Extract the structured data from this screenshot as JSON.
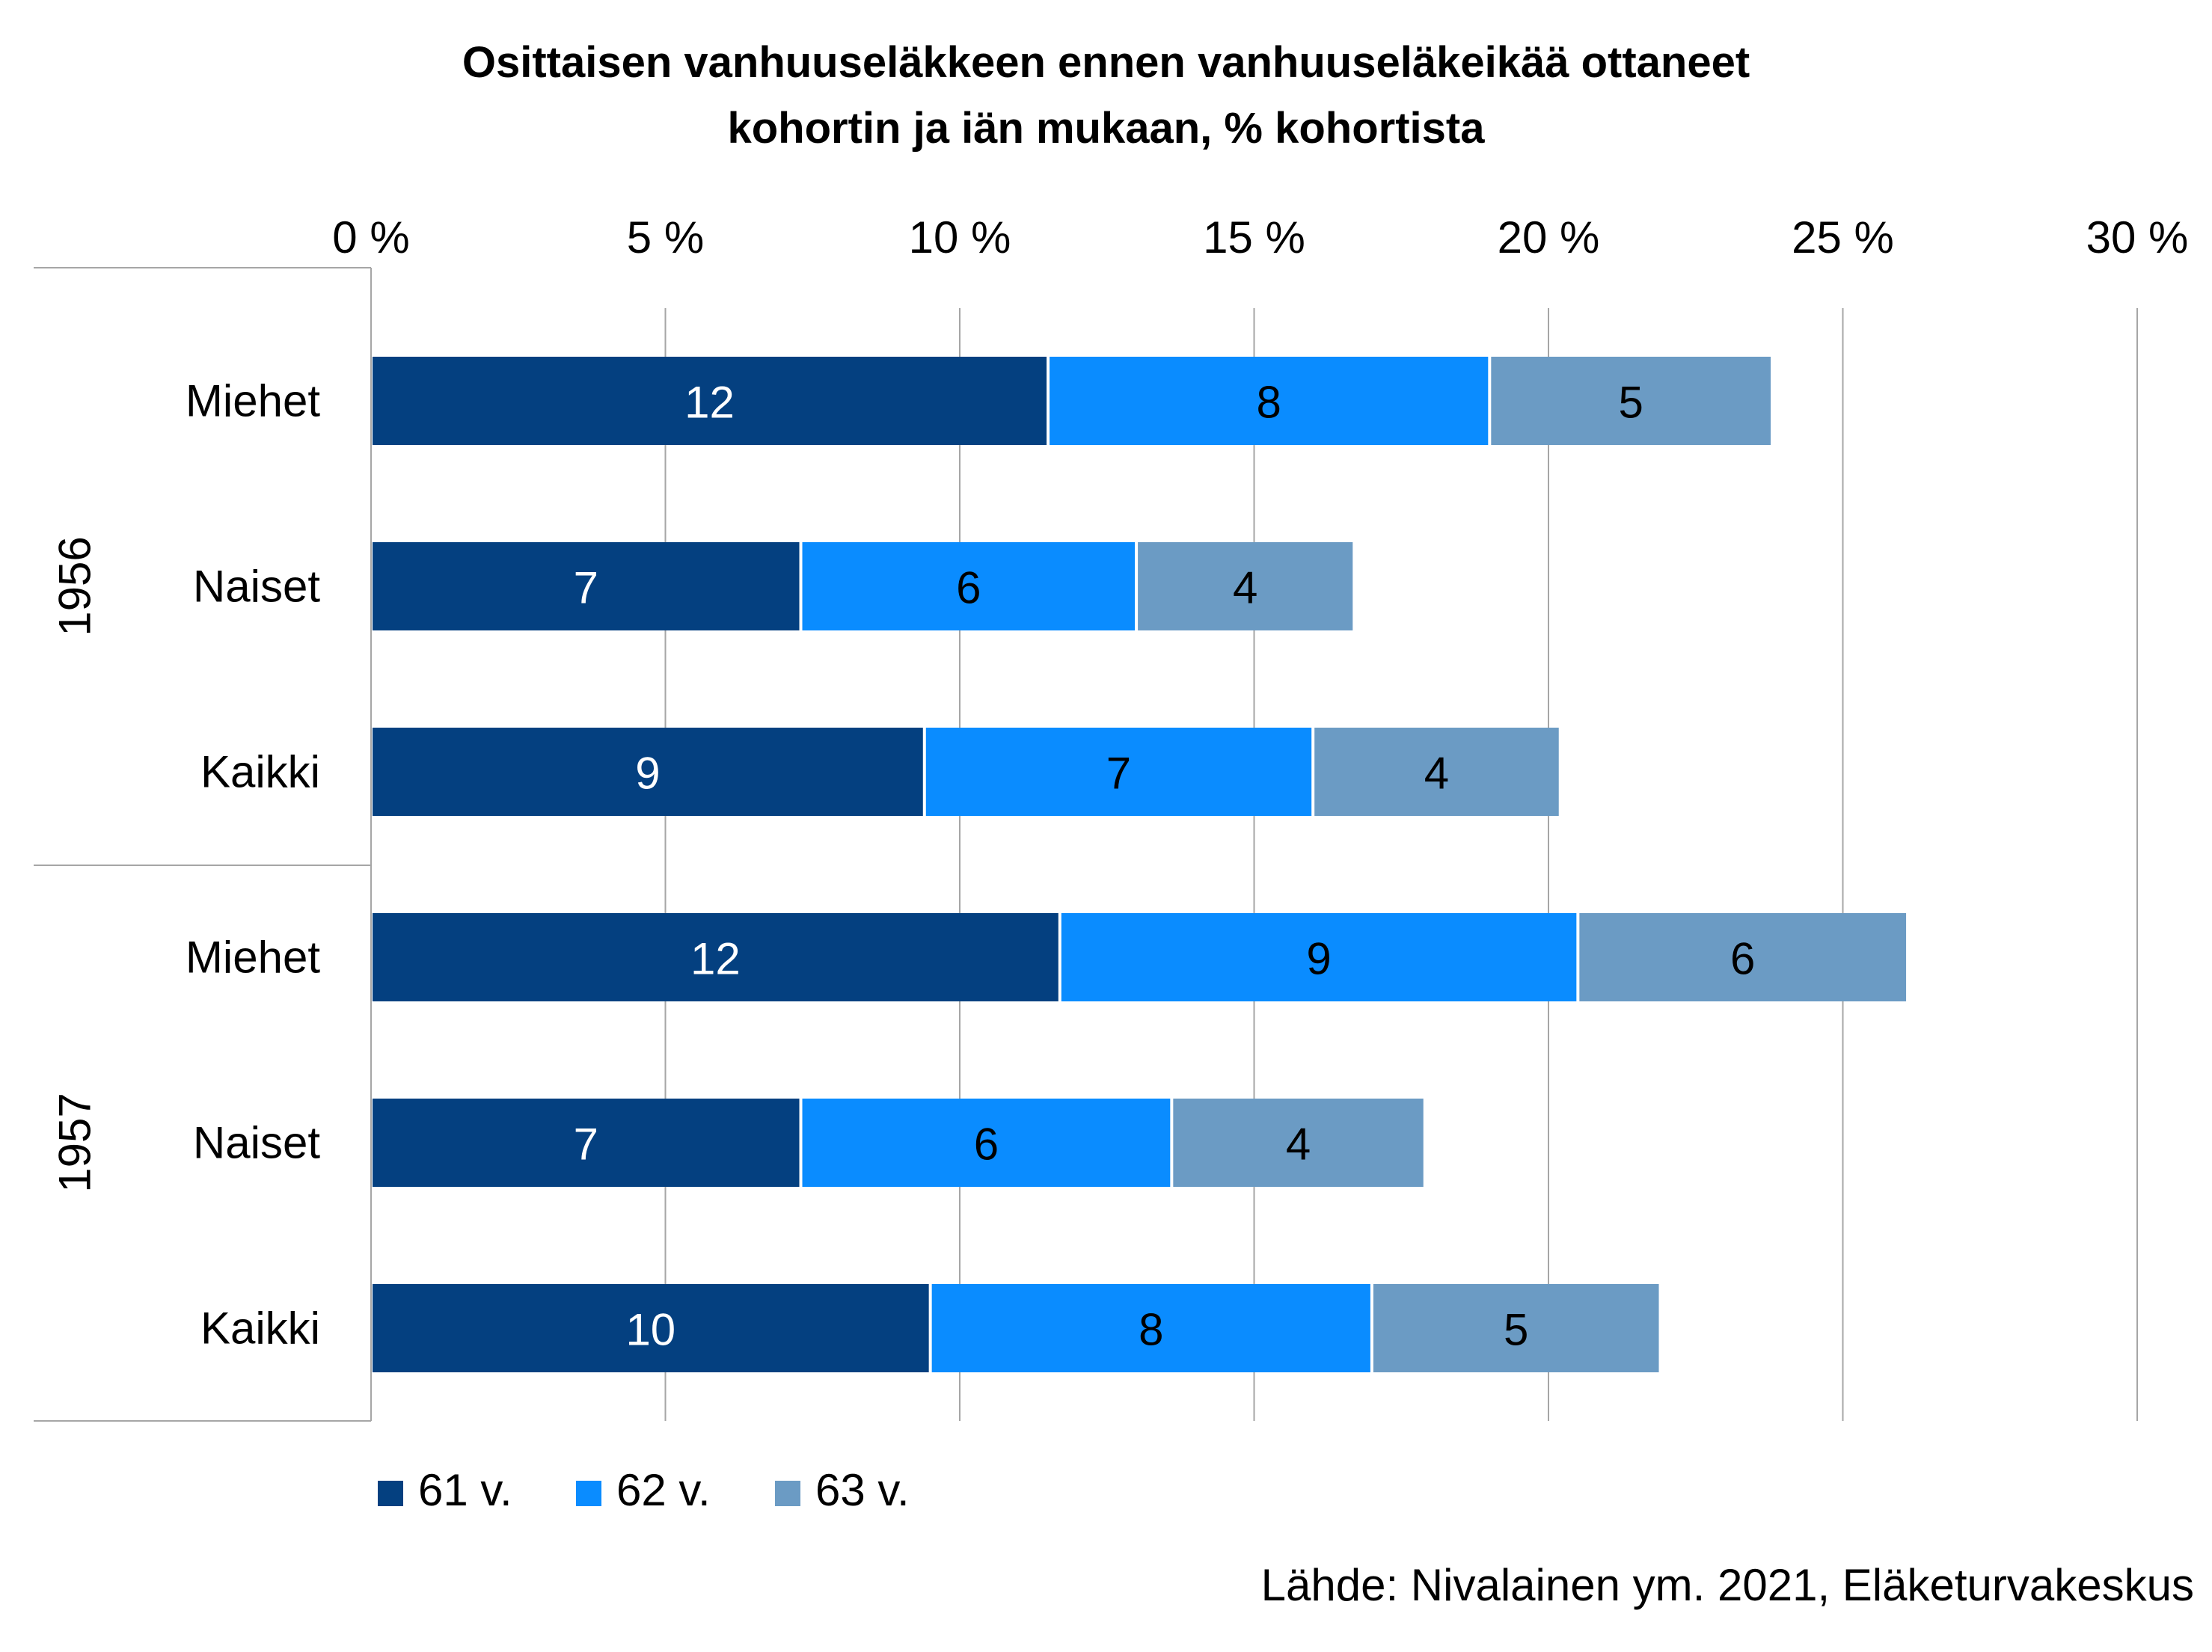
{
  "chart_data": {
    "type": "bar",
    "orientation": "horizontal",
    "stacked": true,
    "title": [
      "Osittaisen vanhuuseläkkeen ennen vanhuuseläkeikää ottaneet",
      "kohortin ja iän mukaan, % kohortista"
    ],
    "source": "Lähde: Nivalainen ym. 2021, Eläketurvakeskus",
    "x_axis": {
      "position": "top",
      "range": [
        0,
        30
      ],
      "ticks": [
        0,
        5,
        10,
        15,
        20,
        25,
        30
      ],
      "tick_labels": [
        "0 %",
        "5 %",
        "10 %",
        "15 %",
        "20 %",
        "25 %",
        "30 %"
      ],
      "gridlines": true
    },
    "groups": [
      {
        "label": "1956",
        "categories": [
          "Miehet",
          "Naiset",
          "Kaikki"
        ]
      },
      {
        "label": "1957",
        "categories": [
          "Miehet",
          "Naiset",
          "Kaikki"
        ]
      }
    ],
    "series": [
      {
        "name": "61 v.",
        "color": "#044080",
        "label_color": "#ffffff",
        "values": [
          11.5,
          7.3,
          9.4,
          11.7,
          7.3,
          9.5
        ],
        "labels": [
          "12",
          "7",
          "9",
          "12",
          "7",
          "10"
        ]
      },
      {
        "name": "62 v.",
        "color": "#0a8cff",
        "label_color": "#000000",
        "values": [
          7.5,
          5.7,
          6.6,
          8.8,
          6.3,
          7.5
        ],
        "labels": [
          "8",
          "6",
          "7",
          "9",
          "6",
          "8"
        ]
      },
      {
        "name": "63 v.",
        "color": "#6b9bc4",
        "label_color": "#000000",
        "values": [
          4.8,
          3.7,
          4.2,
          5.6,
          4.3,
          4.9
        ],
        "labels": [
          "5",
          "4",
          "4",
          "6",
          "4",
          "5"
        ]
      }
    ],
    "legend": "bottom-left"
  }
}
